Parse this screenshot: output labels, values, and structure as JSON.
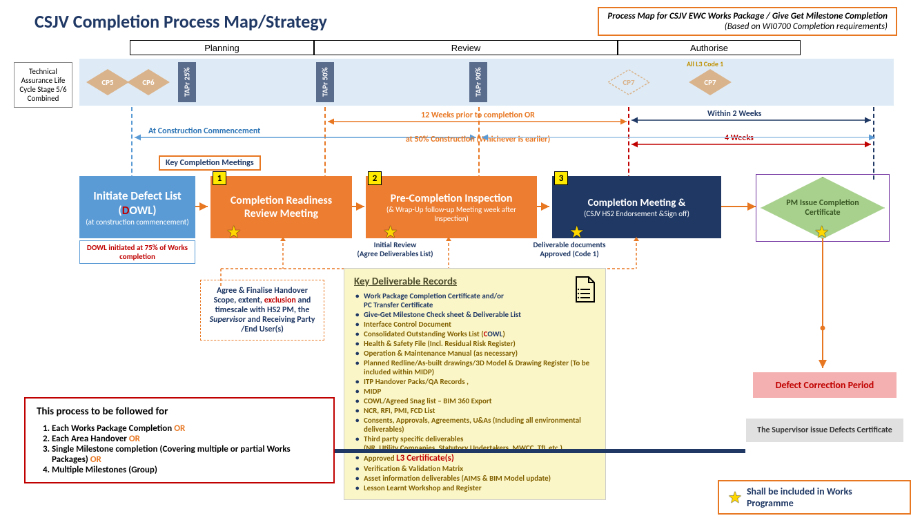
{
  "title": "CSJV Completion Process Map/Strategy",
  "header_box": {
    "line1": "Process Map for CSJV  EWC Works Package / Give Get Milestone Completion",
    "line2": "(Based on WI0700 Completion requirements)"
  },
  "phases": {
    "planning": "Planning",
    "review": "Review",
    "authorise": "Authorise"
  },
  "tal_label": "Technical Assurance Life Cycle Stage 5/6 Combined",
  "band": {
    "cp5": "CP5",
    "cp6": "CP6",
    "tapr25": "TAPr 25%",
    "tapr50": "TAPr 50%",
    "tapr90": "TAPr 90%",
    "cp7a": "CP7",
    "cp7b": "CP7",
    "l3code": "All L3 Code 1"
  },
  "timelines": {
    "construction_start": "At Construction Commencement",
    "twelve_weeks": "12 Weeks prior to completion OR",
    "fifty_pct": "at 50% Construction (Whichever is earlier)",
    "within_2w": "Within 2 Weeks",
    "four_w": "4 Weeks"
  },
  "key_meetings": "Key Completion Meetings",
  "boxes": {
    "initiate": {
      "title": "Initiate Defect List",
      "paren": "(",
      "d": "D",
      "owl": "OWL)",
      "sub": "(at construction commencement)",
      "below": "OWL initiated at 75% of Works completion"
    },
    "crm": {
      "num": "1",
      "title": "Completion Readiness  Review Meeting"
    },
    "pci": {
      "num": "2",
      "title": "Pre-Completion Inspection",
      "sub": "(& Wrap-Up follow-up Meeting  week after Inspection)"
    },
    "cm": {
      "num": "3",
      "title": "Completion Meeting &",
      "sub": "(CSJV HS2 Endorsement &Sign off)"
    }
  },
  "between_labels": {
    "initial_review": "Initial Review",
    "agree_deliv": "(Agree Deliverables List)",
    "deliv_docs": "Deliverable documents",
    "approved": "Approved (Code 1)"
  },
  "handover_note": {
    "t1": "Agree & Finalise Handover Scope, extent, ",
    "exc": "exclusion",
    "t2": " and timescale with HS2 PM, the ",
    "sup": "Supervisor",
    "t3": " and Receiving Party /End User(s)"
  },
  "records": {
    "title": "Key Deliverable Records",
    "items": [
      {
        "text": "Work Package Completion Certificate and/or\nPC Transfer Certificate",
        "cls": "blue"
      },
      {
        "text": "Give-Get Milestone Check sheet & Deliverable List",
        "cls": "blue"
      },
      {
        "text": "Interface Control Document",
        "cls": ""
      },
      {
        "text": "Consolidated Outstanding Works List (<span style='color:#c00000'>C</span><span style='color:#1f3864'>OWL</span>)",
        "cls": "",
        "html": true
      },
      {
        "text": "Health & Safety File (Incl. Residual Risk Register)",
        "cls": ""
      },
      {
        "text": "Operation & Maintenance Manual (as necessary)",
        "cls": ""
      },
      {
        "text": "Planned Redline/As-built drawings/3D Model & Drawing Register (To be included within MIDP)",
        "cls": ""
      },
      {
        "text": "ITP Handover Packs/QA Records ,",
        "cls": ""
      },
      {
        "text": "MIDP",
        "cls": ""
      },
      {
        "text": "COWL/Agreed Snag list – BIM 360 Export",
        "cls": ""
      },
      {
        "text": "NCR, RFI, PMI, FCD List",
        "cls": ""
      },
      {
        "text": "Consents, Approvals, Agreements, U&As (Including all environmental deliverables)",
        "cls": ""
      },
      {
        "text": "Third party specific deliverables\n(NR, Utility Companies, Statutory Undertakers, MWCC, TfL etc.)",
        "cls": ""
      },
      {
        "text": "Approved <span style='color:#c00000;font-size:13px'>L3 Certificate(s)</span>",
        "cls": "",
        "html": true
      },
      {
        "text": "Verification & Validation Matrix",
        "cls": ""
      },
      {
        "text": "Asset information deliverables (AIMS & BIM Model update)",
        "cls": ""
      },
      {
        "text": "Lesson Learnt Workshop and Register",
        "cls": ""
      }
    ]
  },
  "cert_diamond": "PM Issue Completion Certificate",
  "defect_period": "Defect Correction Period",
  "supervisor": "The Supervisor issue Defects Certificate",
  "follow": {
    "title": "This process to be followed for",
    "items": [
      "Each Works Package Completion ",
      "Each Area Handover ",
      "Single Milestone completion (Covering multiple or partial Works Packages) ",
      "Multiple Milestones (Group)"
    ],
    "or": "OR"
  },
  "legend": "Shall be included in Works Programme",
  "colors": {
    "navy": "#1f3864",
    "orange": "#e87722",
    "tan": "#d9b38c",
    "blue_box": "#5b9bd5",
    "dark_navy_box": "#1f3864",
    "green": "#a9d18e",
    "purple": "#7030a0",
    "red": "#c00000",
    "pink": "#f4b0b0",
    "grey": "#e0e0e0",
    "yellow_bg": "#fbf6c8",
    "lightblue_bg": "#deebf6"
  }
}
